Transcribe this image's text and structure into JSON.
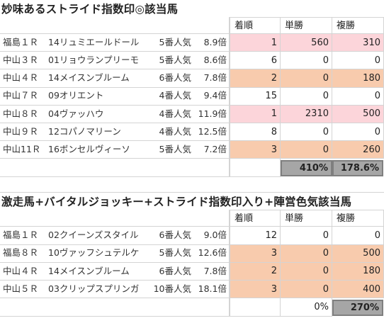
{
  "section1": {
    "title": "妙味あるストライド指数印◎該当馬",
    "headers": [
      "着順",
      "単勝",
      "複勝"
    ],
    "rows": [
      {
        "race": "福島１Ｒ",
        "horse": "14リュミエールドール",
        "pop": "5番人気",
        "odds": "8.9倍",
        "rank": "1",
        "win": "560",
        "place": "310",
        "hl": "pink"
      },
      {
        "race": "中山３Ｒ",
        "horse": "01リョウランプリーモ",
        "pop": "5番人気",
        "odds": "8.6倍",
        "rank": "6",
        "win": "0",
        "place": "0",
        "hl": ""
      },
      {
        "race": "中山４Ｒ",
        "horse": "14メイスンブルーム",
        "pop": "6番人気",
        "odds": "7.8倍",
        "rank": "2",
        "win": "0",
        "place": "180",
        "hl": "peach"
      },
      {
        "race": "中山７Ｒ",
        "horse": "09オリエント",
        "pop": "4番人気",
        "odds": "9.4倍",
        "rank": "15",
        "win": "0",
        "place": "0",
        "hl": ""
      },
      {
        "race": "中山８Ｒ",
        "horse": "04ヴァッハウ",
        "pop": "4番人気",
        "odds": "11.9倍",
        "rank": "1",
        "win": "2310",
        "place": "500",
        "hl": "pink"
      },
      {
        "race": "中山９Ｒ",
        "horse": "12コパノマリーン",
        "pop": "4番人気",
        "odds": "12.5倍",
        "rank": "8",
        "win": "0",
        "place": "0",
        "hl": ""
      },
      {
        "race": "中山11Ｒ",
        "horse": "16ボンセルヴィーソ",
        "pop": "5番人気",
        "odds": "7.2倍",
        "rank": "3",
        "win": "0",
        "place": "260",
        "hl": "peach"
      }
    ],
    "totals": {
      "win": "410%",
      "place": "178.6%"
    }
  },
  "section2": {
    "title": "激走馬+バイタルジョッキー+ストライド指数印入り+陣営色気該当馬",
    "headers": [
      "着順",
      "単勝",
      "複勝"
    ],
    "rows": [
      {
        "race": "福島１Ｒ",
        "horse": "02クイーンズスタイル",
        "pop": "6番人気",
        "odds": "9.0倍",
        "rank": "12",
        "win": "0",
        "place": "0",
        "hl": ""
      },
      {
        "race": "福島８Ｒ",
        "horse": "10ヴァッフシュテルケ",
        "pop": "5番人気",
        "odds": "12.6倍",
        "rank": "3",
        "win": "0",
        "place": "500",
        "hl": "peach"
      },
      {
        "race": "中山４Ｒ",
        "horse": "14メイスンブルーム",
        "pop": "6番人気",
        "odds": "7.8倍",
        "rank": "2",
        "win": "0",
        "place": "180",
        "hl": "peach"
      },
      {
        "race": "中山５Ｒ",
        "horse": "03クリップスプリンガ",
        "pop": "10番人気",
        "odds": "18.1倍",
        "rank": "3",
        "win": "0",
        "place": "400",
        "hl": "peach"
      }
    ],
    "totals": {
      "win": "0%",
      "place": "270%"
    }
  }
}
